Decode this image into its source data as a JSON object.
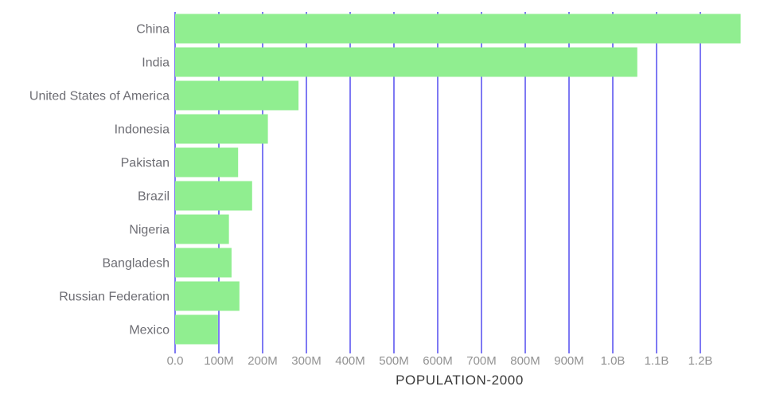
{
  "chart_data": {
    "type": "bar",
    "orientation": "horizontal",
    "title": "",
    "xlabel": "POPULATION-2000",
    "ylabel": "",
    "unit": "people",
    "categories": [
      "China",
      "India",
      "United States of America",
      "Indonesia",
      "Pakistan",
      "Brazil",
      "Nigeria",
      "Bangladesh",
      "Russian Federation",
      "Mexico"
    ],
    "values_millions": [
      1292,
      1056,
      282,
      212,
      144,
      176,
      123,
      129,
      147,
      98
    ],
    "x_ticks": [
      {
        "value": 0,
        "label": "0.0"
      },
      {
        "value": 100,
        "label": "100M"
      },
      {
        "value": 200,
        "label": "200M"
      },
      {
        "value": 300,
        "label": "300M"
      },
      {
        "value": 400,
        "label": "400M"
      },
      {
        "value": 500,
        "label": "500M"
      },
      {
        "value": 600,
        "label": "600M"
      },
      {
        "value": 700,
        "label": "700M"
      },
      {
        "value": 800,
        "label": "800M"
      },
      {
        "value": 900,
        "label": "900M"
      },
      {
        "value": 1000,
        "label": "1.0B"
      },
      {
        "value": 1100,
        "label": "1.1B"
      },
      {
        "value": 1200,
        "label": "1.2B"
      }
    ],
    "xlim_millions": [
      0,
      1300
    ],
    "grid": "vertical-gridlines-behind-bars",
    "legend": "none",
    "colors": {
      "bar": "#90ee90",
      "gridline": "#7e79f3",
      "tick_label": "#929292",
      "category_label": "#6e6e74",
      "axis_title": "#3a3a3a",
      "background": "#ffffff"
    }
  }
}
